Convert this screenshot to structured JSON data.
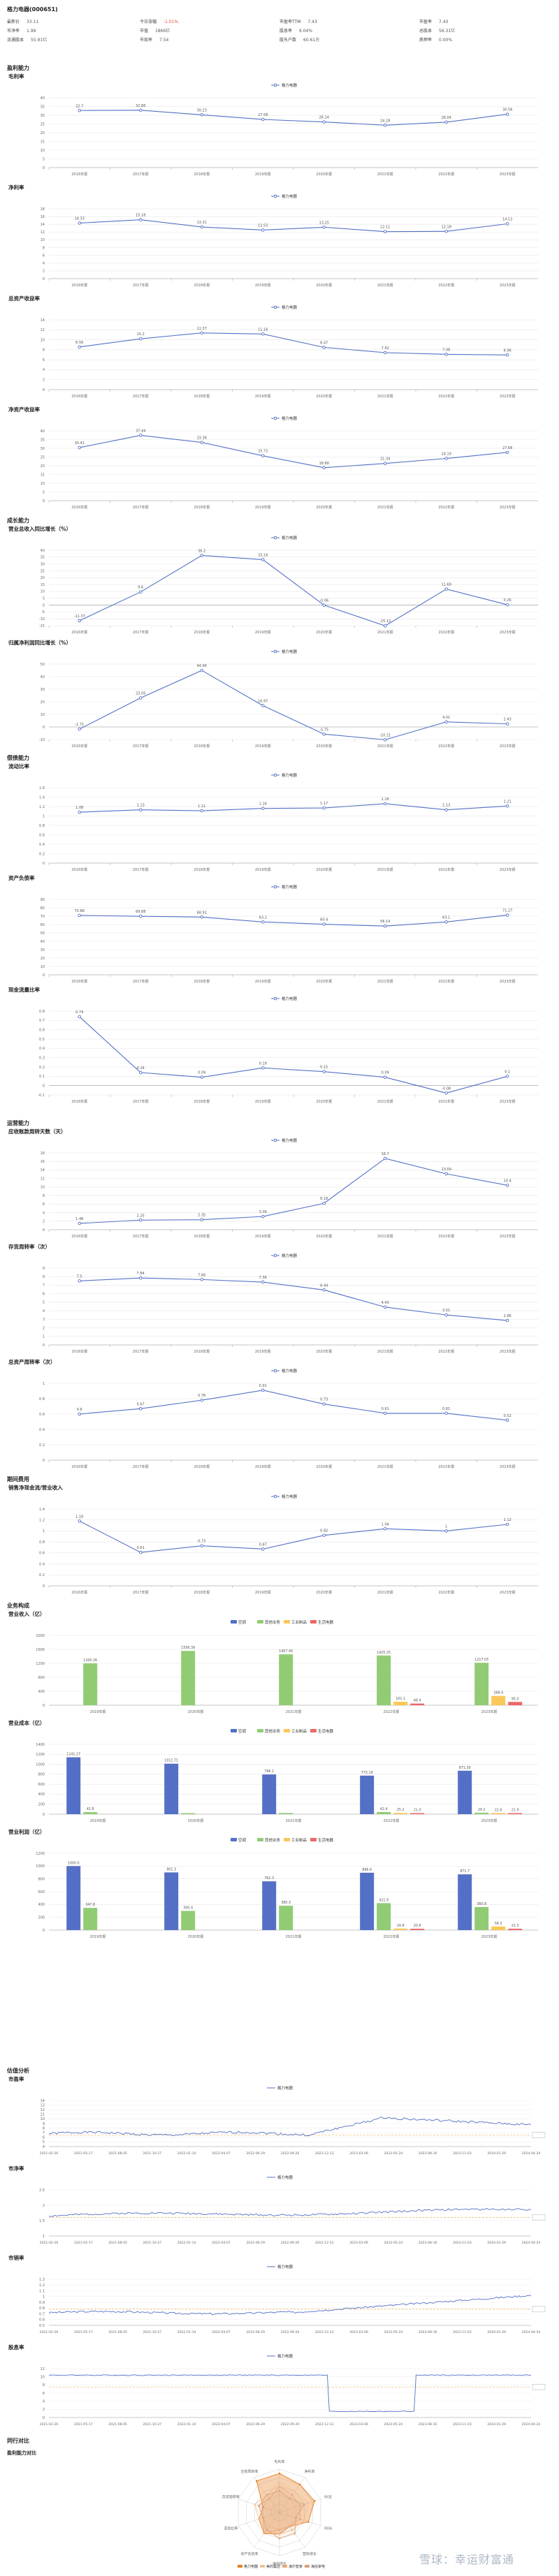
{
  "header": {
    "title": "格力电器(000651)"
  },
  "stats": [
    {
      "label": "最新价",
      "value": "33.11",
      "red": false
    },
    {
      "label": "今日涨幅",
      "value": "-1.01%",
      "red": true
    },
    {
      "label": "市盈率TTM",
      "value": "7.43",
      "red": false
    },
    {
      "label": "市盈率",
      "value": "7.43",
      "red": false
    },
    {
      "label": "市净率",
      "value": "1.99",
      "red": false
    },
    {
      "label": "市值",
      "value": "1866亿",
      "red": false
    },
    {
      "label": "股息率",
      "value": "6.04%",
      "red": false
    },
    {
      "label": "总股本",
      "value": "56.31亿",
      "red": false
    },
    {
      "label": "流通股本",
      "value": "55.91亿",
      "red": false
    },
    {
      "label": "市现率",
      "value": "7.54",
      "red": false
    },
    {
      "label": "股东户数",
      "value": "60.61万",
      "red": false
    },
    {
      "label": "质押率",
      "value": "0.00%",
      "red": false
    }
  ],
  "sections": {
    "profit": "盈利能力",
    "growth": "成长能力",
    "solvency": "偿债能力",
    "operation": "运营能力",
    "expense": "期间费用",
    "business": "业务构成",
    "valuation": "估值分析",
    "peers": "同行对比",
    "peers_sub": "盈利能力对比"
  },
  "chart_data": [
    {
      "id": "gross",
      "type": "line",
      "title": "毛利率",
      "legend": "格力电器",
      "categories": [
        "2016年报",
        "2017年报",
        "2018年报",
        "2019年报",
        "2020年报",
        "2021年报",
        "2022年报",
        "2023年报"
      ],
      "values": [
        32.7,
        32.86,
        30.23,
        27.58,
        26.14,
        24.28,
        26.04,
        30.56
      ],
      "ylim": [
        0,
        40
      ],
      "ticks": [
        0,
        5,
        10,
        15,
        20,
        25,
        30,
        35,
        40
      ]
    },
    {
      "id": "net",
      "type": "line",
      "title": "净利率",
      "legend": "格力电器",
      "categories": [
        "2016年报",
        "2017年报",
        "2018年报",
        "2019年报",
        "2020年报",
        "2021年报",
        "2022年报",
        "2023年报"
      ],
      "values": [
        14.33,
        15.18,
        13.31,
        12.53,
        13.25,
        12.11,
        12.18,
        14.13
      ],
      "ylim": [
        0,
        18
      ],
      "ticks": [
        0,
        2,
        4,
        6,
        8,
        10,
        12,
        14,
        16,
        18
      ]
    },
    {
      "id": "roa",
      "type": "line",
      "title": "总资产收益率",
      "legend": "格力电器",
      "categories": [
        "2016年报",
        "2017年报",
        "2018年报",
        "2019年报",
        "2020年报",
        "2021年报",
        "2022年报",
        "2023年报"
      ],
      "values": [
        8.56,
        10.2,
        11.37,
        11.16,
        8.47,
        7.42,
        7.08,
        6.96
      ],
      "ylim": [
        0,
        14
      ],
      "ticks": [
        0,
        2,
        4,
        6,
        8,
        10,
        12,
        14
      ]
    },
    {
      "id": "roe",
      "type": "line",
      "title": "净资产收益率",
      "legend": "格力电器",
      "categories": [
        "2016年报",
        "2017年报",
        "2018年报",
        "2019年报",
        "2020年报",
        "2021年报",
        "2022年报",
        "2023年报"
      ],
      "values": [
        30.41,
        37.44,
        33.36,
        25.72,
        18.88,
        21.34,
        24.19,
        27.66
      ],
      "ylim": [
        0,
        40
      ],
      "ticks": [
        0,
        5,
        10,
        15,
        20,
        25,
        30,
        35,
        40
      ]
    },
    {
      "id": "revgrowth",
      "type": "line",
      "title": "营业总收入同比增长（%）",
      "legend": "格力电器",
      "categories": [
        "2016年报",
        "2017年报",
        "2018年报",
        "2019年报",
        "2020年报",
        "2021年报",
        "2022年报",
        "2023年报"
      ],
      "values": [
        -11.37,
        9.6,
        36.2,
        33.16,
        -0.06,
        -15.12,
        11.69,
        0.26
      ],
      "ylim": [
        -15,
        40
      ],
      "ticks": [
        -15,
        -10,
        -5,
        0,
        5,
        10,
        15,
        20,
        25,
        30,
        35,
        40
      ]
    },
    {
      "id": "npgrowth",
      "type": "line",
      "title": "归属净利润同比增长（%）",
      "legend": "格力电器",
      "categories": [
        "2016年报",
        "2017年报",
        "2018年报",
        "2019年报",
        "2020年报",
        "2021年报",
        "2022年报",
        "2023年报"
      ],
      "values": [
        -1.71,
        23.05,
        44.96,
        16.97,
        -5.75,
        -10.21,
        4.01,
        2.43
      ],
      "ylim": [
        -10,
        50
      ],
      "ticks": [
        -10,
        0,
        10,
        20,
        30,
        40,
        50
      ]
    },
    {
      "id": "current",
      "type": "line",
      "title": "流动比率",
      "legend": "格力电器",
      "categories": [
        "2016年报",
        "2017年报",
        "2018年报",
        "2019年报",
        "2020年报",
        "2021年报",
        "2022年报",
        "2023年报"
      ],
      "values": [
        1.08,
        1.13,
        1.11,
        1.16,
        1.17,
        1.26,
        1.13,
        1.21
      ],
      "ylim": [
        0,
        1.6
      ],
      "ticks": [
        0,
        0.2,
        0.4,
        0.6,
        0.8,
        1,
        1.2,
        1.4,
        1.6
      ]
    },
    {
      "id": "debt",
      "type": "line",
      "title": "资产负债率",
      "legend": "格力电器",
      "categories": [
        "2016年报",
        "2017年报",
        "2018年报",
        "2019年报",
        "2020年报",
        "2021年报",
        "2022年报",
        "2023年报"
      ],
      "values": [
        70.88,
        69.88,
        68.91,
        63.1,
        60.4,
        58.14,
        63.1,
        71.27
      ],
      "ylim": [
        0,
        90
      ],
      "ticks": [
        0,
        10,
        20,
        30,
        40,
        50,
        60,
        70,
        80,
        90
      ]
    },
    {
      "id": "cashratio",
      "type": "line",
      "title": "现金流量比率",
      "legend": "格力电器",
      "categories": [
        "2016年报",
        "2017年报",
        "2018年报",
        "2019年报",
        "2020年报",
        "2021年报",
        "2022年报",
        "2023年报"
      ],
      "values": [
        0.74,
        0.14,
        0.09,
        0.19,
        0.15,
        0.09,
        -0.08,
        0.1
      ],
      "ylim": [
        -0.1,
        0.8
      ],
      "ticks": [
        -0.1,
        0,
        0.1,
        0.2,
        0.3,
        0.4,
        0.5,
        0.6,
        0.7,
        0.8
      ]
    },
    {
      "id": "artt",
      "type": "line",
      "title": "应收账款周转天数（天）",
      "legend": "格力电器",
      "categories": [
        "2016年报",
        "2017年报",
        "2018年报",
        "2019年报",
        "2020年报",
        "2021年报",
        "2022年报",
        "2023年报"
      ],
      "values": [
        1.48,
        2.25,
        2.35,
        3.09,
        6.18,
        16.7,
        13.09,
        10.4
      ],
      "ylim": [
        0,
        18
      ],
      "ticks": [
        0,
        2,
        4,
        6,
        8,
        10,
        12,
        14,
        16,
        18
      ]
    },
    {
      "id": "invtt",
      "type": "line",
      "title": "存货周转率（次）",
      "legend": "格力电器",
      "categories": [
        "2016年报",
        "2017年报",
        "2018年报",
        "2019年报",
        "2020年报",
        "2021年报",
        "2022年报",
        "2023年报"
      ],
      "values": [
        7.5,
        7.84,
        7.66,
        7.36,
        6.44,
        4.43,
        3.51,
        2.86
      ],
      "ylim": [
        0,
        9
      ],
      "ticks": [
        0,
        1,
        2,
        3,
        4,
        5,
        6,
        7,
        8,
        9
      ]
    },
    {
      "id": "atr",
      "type": "line",
      "title": "总资产周转率（次）",
      "legend": "格力电器",
      "categories": [
        "2016年报",
        "2017年报",
        "2018年报",
        "2019年报",
        "2020年报",
        "2021年报",
        "2022年报",
        "2023年报"
      ],
      "values": [
        0.6,
        0.67,
        0.78,
        0.91,
        0.73,
        0.61,
        0.61,
        0.52
      ],
      "ylim": [
        0,
        1
      ],
      "ticks": [
        0,
        0.2,
        0.4,
        0.6,
        0.8,
        1
      ]
    },
    {
      "id": "salesexp",
      "type": "line",
      "title": "销售净现金流/营业收入",
      "legend": "格力电器",
      "categories": [
        "2016年报",
        "2017年报",
        "2018年报",
        "2019年报",
        "2020年报",
        "2021年报",
        "2022年报",
        "2023年报"
      ],
      "values": [
        1.18,
        0.61,
        0.73,
        0.67,
        0.92,
        1.04,
        1.0,
        1.12
      ],
      "ylim": [
        0,
        1.4
      ],
      "ticks": [
        0,
        0.2,
        0.4,
        0.6,
        0.8,
        1,
        1.2,
        1.4
      ]
    },
    {
      "id": "rev",
      "type": "bar",
      "title": "营业收入（亿）",
      "legend": [
        "空调",
        "其他业务",
        "工业制品",
        "生活电器"
      ],
      "colors": [
        "#5470c6",
        "#91cc75",
        "#fac858",
        "#ee6666"
      ],
      "categories": [
        "2019年报",
        "2020年报",
        "2021年报",
        "2022年报",
        "2023年报"
      ],
      "series": [
        [
          0,
          0,
          0,
          0,
          0
        ],
        [
          1200,
          1556,
          1457,
          1425,
          1217
        ],
        [
          0,
          0,
          0,
          101,
          268
        ],
        [
          0,
          0,
          0,
          48,
          95
        ]
      ],
      "labels": [
        [
          "",
          "",
          "",
          "",
          ""
        ],
        [
          "1200.26",
          "1556.39",
          "1457.49",
          "1425.25",
          "1217.03"
        ],
        [
          "",
          "",
          "",
          "101.1",
          "268.4"
        ],
        [
          "",
          "",
          "",
          "48.4",
          "95.0"
        ]
      ],
      "ylim": [
        0,
        2000
      ],
      "ticks": [
        0,
        400,
        800,
        1200,
        1600,
        2000
      ]
    },
    {
      "id": "cost",
      "type": "bar",
      "title": "营业成本（亿）",
      "legend": [
        "空调",
        "其他业务",
        "工业制品",
        "生活电器"
      ],
      "colors": [
        "#5470c6",
        "#91cc75",
        "#fac858",
        "#ee6666"
      ],
      "categories": [
        "2019年报",
        "2020年报",
        "2021年报",
        "2022年报",
        "2023年报"
      ],
      "series": [
        [
          1141,
          1012,
          796,
          773,
          871
        ],
        [
          41,
          20,
          23,
          42,
          29
        ],
        [
          0,
          0,
          0,
          25,
          22
        ],
        [
          0,
          0,
          0,
          21,
          21
        ]
      ],
      "labels": [
        [
          "1141.27",
          "1012.71",
          "796.1",
          "773.19",
          "871.39"
        ],
        [
          "41.8",
          "",
          "",
          "42.4",
          "29.2"
        ],
        [
          "",
          "",
          "",
          "25.2",
          "22.6"
        ],
        [
          "",
          "",
          "",
          "21.0",
          "21.9"
        ]
      ],
      "ylim": [
        0,
        1400
      ],
      "ticks": [
        0,
        200,
        400,
        600,
        800,
        1000,
        1200,
        1400
      ]
    },
    {
      "id": "gp",
      "type": "bar",
      "title": "营业利润（亿）",
      "legend": [
        "空调",
        "其他业务",
        "工业制品",
        "生活电器"
      ],
      "colors": [
        "#5470c6",
        "#91cc75",
        "#fac858",
        "#ee6666"
      ],
      "categories": [
        "2019年报",
        "2020年报",
        "2021年报",
        "2022年报",
        "2023年报"
      ],
      "series": [
        [
          1000,
          901,
          762,
          896,
          871
        ],
        [
          347,
          300,
          380,
          421,
          360
        ],
        [
          0,
          0,
          0,
          24,
          56
        ],
        [
          0,
          0,
          0,
          20,
          21
        ]
      ],
      "labels": [
        [
          "1000.0",
          "901.3",
          "762.3",
          "896.6",
          "871.7"
        ],
        [
          "347.8",
          "300.4",
          "380.3",
          "421.9",
          "360.8"
        ],
        [
          "",
          "",
          "",
          "24.8",
          "56.3"
        ],
        [
          "",
          "",
          "",
          "20.6",
          "21.3"
        ]
      ],
      "ylim": [
        0,
        1200
      ],
      "ticks": [
        0,
        200,
        400,
        600,
        800,
        1000,
        1200
      ]
    },
    {
      "id": "pe",
      "type": "ts",
      "title": "市盈率",
      "legend": "格力电器",
      "xlabels": [
        "2021-02-26",
        "2021-05-17",
        "2021-08-05",
        "2021-10-27",
        "2022-01-14",
        "2022-04-07",
        "2022-06-29",
        "2022-09-20",
        "2022-12-12",
        "2023-03-06",
        "2023-05-24",
        "2023-08-16",
        "2023-11-03",
        "2024-01-29",
        "2024-04-24"
      ],
      "ylim": [
        4,
        14
      ],
      "ticks": [
        4,
        5,
        6,
        7,
        8,
        9,
        10,
        11,
        12,
        13,
        14
      ],
      "ref": 6.5,
      "seed": 1,
      "shape": "pe"
    },
    {
      "id": "pb",
      "type": "ts",
      "title": "市净率",
      "legend": "格力电器",
      "xlabels": [
        "2021-02-26",
        "2021-05-17",
        "2021-08-05",
        "2021-10-27",
        "2022-01-14",
        "2022-04-07",
        "2022-06-29",
        "2022-09-20",
        "2022-12-12",
        "2023-03-06",
        "2023-05-24",
        "2023-08-16",
        "2023-11-03",
        "2024-01-29",
        "2024-04-24"
      ],
      "ylim": [
        1,
        2.5
      ],
      "ticks": [
        1,
        1.5,
        2,
        2.5
      ],
      "ref": 1.6,
      "seed": 2,
      "shape": "pb"
    },
    {
      "id": "ps",
      "type": "ts",
      "title": "市销率",
      "legend": "格力电器",
      "xlabels": [
        "2021-02-26",
        "2021-05-17",
        "2021-08-05",
        "2021-10-27",
        "2022-01-14",
        "2022-04-07",
        "2022-06-29",
        "2022-09-20",
        "2022-12-12",
        "2023-03-06",
        "2023-05-24",
        "2023-08-16",
        "2023-11-03",
        "2024-01-29",
        "2024-04-24"
      ],
      "ylim": [
        0.5,
        1.3
      ],
      "ticks": [
        0.5,
        0.6,
        0.7,
        0.8,
        0.9,
        1,
        1.1,
        1.2,
        1.3
      ],
      "ref": 0.78,
      "seed": 3,
      "shape": "ps"
    },
    {
      "id": "dy",
      "type": "ts",
      "title": "股息率",
      "legend": "格力电器",
      "xlabels": [
        "2021-02-26",
        "2021-05-17",
        "2021-08-05",
        "2021-10-27",
        "2022-01-14",
        "2022-04-07",
        "2022-06-29",
        "2022-09-20",
        "2022-12-12",
        "2023-03-06",
        "2023-05-24",
        "2023-08-16",
        "2023-11-03",
        "2024-01-29",
        "2024-04-24"
      ],
      "ylim": [
        0,
        12
      ],
      "ticks": [
        0,
        2,
        4,
        6,
        8,
        10,
        12
      ],
      "ref": 7.5,
      "seed": 4,
      "shape": "dy"
    },
    {
      "id": "radar",
      "type": "radar",
      "legend": [
        "格力电器",
        "美的集团",
        "海尔智家",
        "海信家电"
      ],
      "colors": [
        "#e67e22",
        "#f0c29b",
        "#e8a87c",
        "#d9a37a"
      ],
      "indicators": [
        "毛利率",
        "净利率",
        "ROE",
        "ROA",
        "营收增长",
        "净利增长",
        "资产负债率",
        "流动比率",
        "存货周转率",
        "应收周转率"
      ],
      "values": [
        [
          0.9,
          0.8,
          0.85,
          0.7,
          0.4,
          0.5,
          0.6,
          0.5,
          0.4,
          0.9
        ],
        [
          0.7,
          0.6,
          0.7,
          0.6,
          0.5,
          0.5,
          0.5,
          0.5,
          0.6,
          0.5
        ],
        [
          0.6,
          0.5,
          0.5,
          0.5,
          0.4,
          0.4,
          0.6,
          0.4,
          0.5,
          0.4
        ],
        [
          0.5,
          0.4,
          0.6,
          0.4,
          0.6,
          0.6,
          0.5,
          0.4,
          0.5,
          0.5
        ]
      ]
    }
  ],
  "watermark": "雪球：幸运财富通"
}
